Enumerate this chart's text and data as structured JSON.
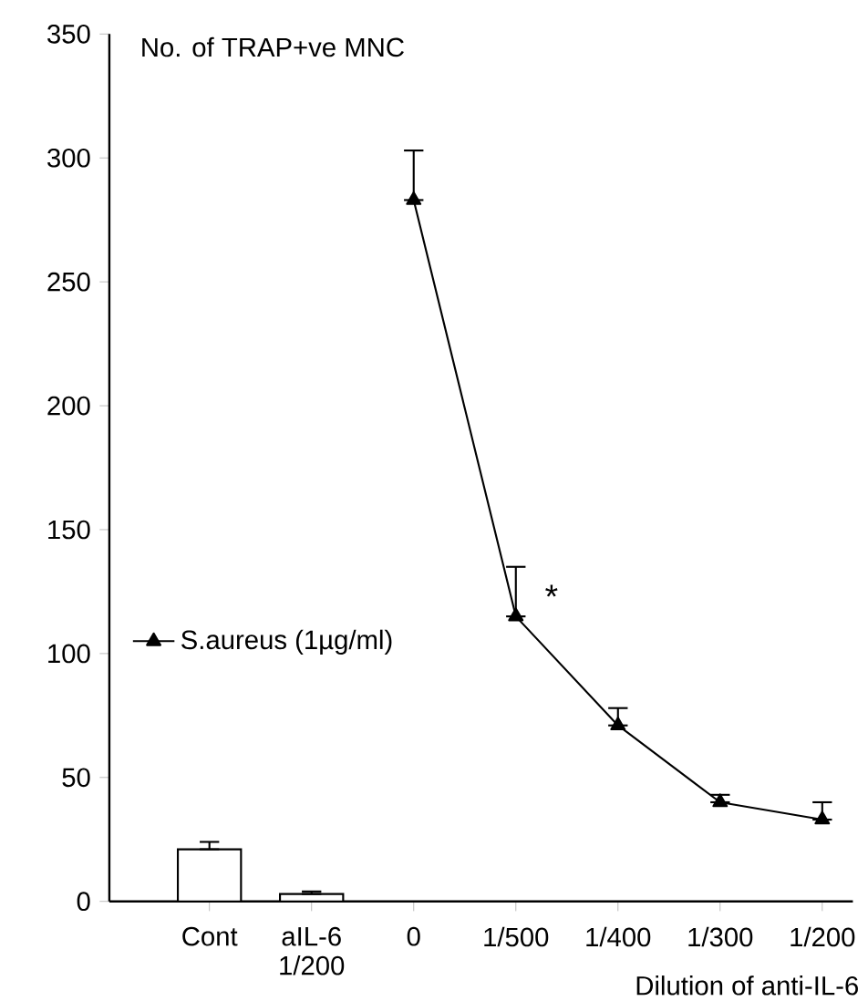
{
  "chart_data": {
    "type": "line",
    "ylabel": "No. of TRAP+ve MNC",
    "xlabel": "Dilution of anti-IL-6",
    "categories": [
      "Cont",
      "aIL-6 1/200",
      "0",
      "1/500",
      "1/400",
      "1/300",
      "1/200"
    ],
    "series": [
      {
        "type": "bar",
        "color": "#ffffff",
        "values": [
          21,
          3,
          null,
          null,
          null,
          null,
          null
        ],
        "errors": [
          [
            21,
            24
          ],
          [
            3,
            4
          ],
          null,
          null,
          null,
          null,
          null
        ]
      },
      {
        "name": "S.aureus (1µg/ml)",
        "color": "#000000",
        "values": [
          null,
          null,
          283,
          115,
          71,
          40,
          33
        ],
        "errors": [
          null,
          null,
          [
            283,
            303
          ],
          [
            115,
            135
          ],
          [
            71,
            78
          ],
          [
            40,
            43
          ],
          [
            33,
            40
          ]
        ]
      }
    ],
    "ylim": [
      0,
      350
    ],
    "yticks": [
      0,
      50,
      100,
      150,
      200,
      250,
      300,
      350
    ],
    "annotations": [
      {
        "text": "*",
        "x": "1/500",
        "y": 123
      }
    ],
    "legend": "left",
    "marker": "triangle",
    "line_style": "solid"
  }
}
